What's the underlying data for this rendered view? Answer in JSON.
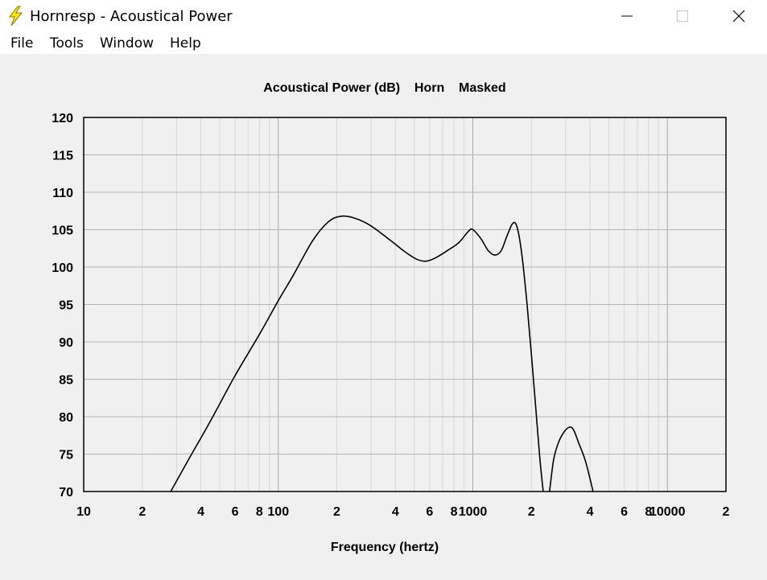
{
  "window": {
    "title": "Hornresp - Acoustical Power",
    "icon": "lightning-bolt-icon",
    "controls": [
      "minimize-icon",
      "maximize-icon",
      "close-icon"
    ]
  },
  "menu": {
    "items": [
      {
        "label": "File"
      },
      {
        "label": "Tools"
      },
      {
        "label": "Window"
      },
      {
        "label": "Help"
      }
    ]
  },
  "chart_data": {
    "type": "line",
    "title": "Acoustical Power (dB)    Horn    Masked",
    "xlabel": "Frequency (hertz)",
    "ylabel": "",
    "x_scale": "log",
    "xlim": [
      10,
      20000
    ],
    "ylim": [
      70,
      120
    ],
    "y_ticks": [
      120,
      115,
      110,
      105,
      100,
      95,
      90,
      85,
      80,
      75,
      70
    ],
    "x_tick_labels": [
      {
        "value": 10,
        "label": "10"
      },
      {
        "value": 20,
        "label": "2"
      },
      {
        "value": 40,
        "label": "4"
      },
      {
        "value": 60,
        "label": "6"
      },
      {
        "value": 80,
        "label": "8"
      },
      {
        "value": 100,
        "label": "100"
      },
      {
        "value": 200,
        "label": "2"
      },
      {
        "value": 400,
        "label": "4"
      },
      {
        "value": 600,
        "label": "6"
      },
      {
        "value": 800,
        "label": "8"
      },
      {
        "value": 1000,
        "label": "1000"
      },
      {
        "value": 2000,
        "label": "2"
      },
      {
        "value": 4000,
        "label": "4"
      },
      {
        "value": 6000,
        "label": "6"
      },
      {
        "value": 8000,
        "label": "8"
      },
      {
        "value": 10000,
        "label": "10000"
      },
      {
        "value": 20000,
        "label": "2"
      }
    ],
    "grid": true,
    "legend": "none",
    "series": [
      {
        "segments": [
          [
            [
              28,
              70
            ],
            [
              35,
              74.5
            ],
            [
              45,
              79.5
            ],
            [
              60,
              85.5
            ],
            [
              80,
              91
            ],
            [
              100,
              95.5
            ],
            [
              120,
              99
            ],
            [
              150,
              103.5
            ],
            [
              180,
              106
            ],
            [
              210,
              106.8
            ],
            [
              250,
              106.5
            ],
            [
              300,
              105.5
            ],
            [
              380,
              103.5
            ],
            [
              450,
              102
            ],
            [
              520,
              101
            ],
            [
              580,
              100.8
            ],
            [
              650,
              101.3
            ],
            [
              750,
              102.3
            ],
            [
              850,
              103.3
            ],
            [
              950,
              104.8
            ],
            [
              1000,
              105
            ],
            [
              1100,
              103.8
            ],
            [
              1200,
              102.2
            ],
            [
              1300,
              101.6
            ],
            [
              1400,
              102.2
            ],
            [
              1500,
              104.2
            ],
            [
              1600,
              105.8
            ],
            [
              1680,
              105.5
            ],
            [
              1780,
              102
            ],
            [
              1900,
              95
            ],
            [
              2050,
              85
            ],
            [
              2200,
              75
            ],
            [
              2300,
              70
            ]
          ],
          [
            [
              2480,
              70
            ],
            [
              2600,
              74.2
            ],
            [
              2750,
              76.5
            ],
            [
              2950,
              78
            ],
            [
              3150,
              78.6
            ],
            [
              3300,
              78.2
            ],
            [
              3500,
              76.5
            ],
            [
              3800,
              74
            ],
            [
              4150,
              70
            ]
          ]
        ]
      }
    ]
  }
}
